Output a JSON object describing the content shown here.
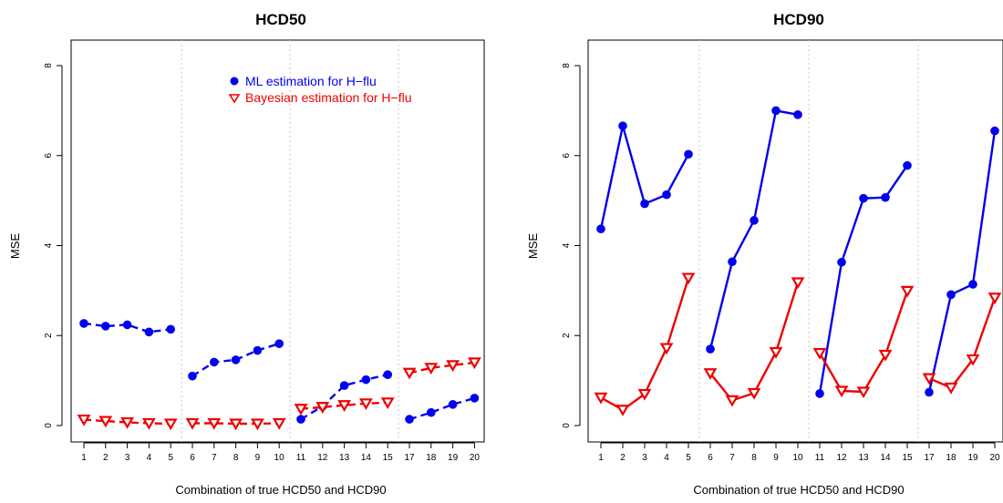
{
  "chart_data": [
    {
      "type": "line",
      "title": "HCD50",
      "xlabel": "Combination of true HCD50 and HCD90",
      "ylabel": "MSE",
      "ylim": [
        0,
        8
      ],
      "yticks": [
        "0",
        "2",
        "4",
        "6",
        "8"
      ],
      "categories": [
        "1",
        "2",
        "3",
        "4",
        "5",
        "6",
        "7",
        "8",
        "9",
        "10",
        "11",
        "12",
        "13",
        "14",
        "15",
        "17",
        "18",
        "19",
        "20"
      ],
      "groups": [
        [
          0,
          1,
          2,
          3,
          4
        ],
        [
          5,
          6,
          7,
          8,
          9
        ],
        [
          10,
          11,
          12,
          13,
          14
        ],
        [
          15,
          16,
          17,
          18
        ]
      ],
      "line_style": "dashed",
      "legend": {
        "placement": "top-right"
      },
      "series": [
        {
          "name": "ML estimation for H−flu",
          "color": "#0000ee",
          "marker": "circle",
          "values": [
            2.27,
            2.21,
            2.24,
            2.08,
            2.14,
            1.1,
            1.41,
            1.46,
            1.67,
            1.82,
            0.14,
            0.43,
            0.89,
            1.02,
            1.13,
            0.14,
            0.29,
            0.47,
            0.61
          ]
        },
        {
          "name": "Bayesian estimation for H−flu",
          "color": "#ee0000",
          "marker": "triangle-down",
          "values": [
            0.13,
            0.1,
            0.07,
            0.05,
            0.04,
            0.05,
            0.05,
            0.04,
            0.04,
            0.05,
            0.37,
            0.41,
            0.45,
            0.49,
            0.51,
            1.17,
            1.28,
            1.34,
            1.4
          ]
        }
      ]
    },
    {
      "type": "line",
      "title": "HCD90",
      "xlabel": "Combination of true HCD50 and HCD90",
      "ylabel": "MSE",
      "ylim": [
        0,
        8
      ],
      "yticks": [
        "0",
        "2",
        "4",
        "6",
        "8"
      ],
      "categories": [
        "1",
        "2",
        "3",
        "4",
        "5",
        "6",
        "7",
        "8",
        "9",
        "10",
        "11",
        "12",
        "13",
        "14",
        "15",
        "17",
        "18",
        "19",
        "20"
      ],
      "groups": [
        [
          0,
          1,
          2,
          3,
          4
        ],
        [
          5,
          6,
          7,
          8,
          9
        ],
        [
          10,
          11,
          12,
          13,
          14
        ],
        [
          15,
          16,
          17,
          18
        ]
      ],
      "line_style": "solid",
      "series": [
        {
          "name": "ML estimation for H−flu",
          "color": "#0000ee",
          "marker": "circle",
          "values": [
            4.37,
            6.66,
            4.93,
            5.13,
            6.03,
            1.7,
            3.64,
            4.56,
            7.0,
            6.91,
            0.71,
            3.63,
            5.05,
            5.07,
            5.78,
            0.74,
            2.91,
            3.14,
            6.55
          ]
        },
        {
          "name": "Bayesian estimation for H−flu",
          "color": "#ee0000",
          "marker": "triangle-down",
          "values": [
            0.62,
            0.35,
            0.7,
            1.72,
            3.28,
            1.16,
            0.56,
            0.72,
            1.63,
            3.18,
            1.61,
            0.77,
            0.75,
            1.57,
            2.99,
            1.05,
            0.84,
            1.47,
            2.84
          ]
        }
      ]
    }
  ]
}
